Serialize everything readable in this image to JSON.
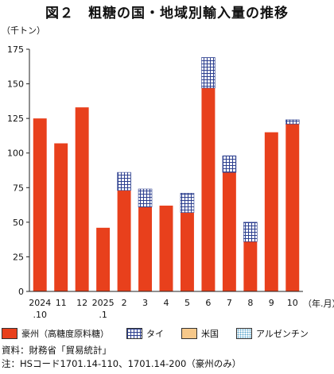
{
  "title": "図２　粗糖の国・地域別輸入量の推移",
  "chart_data": {
    "type": "bar",
    "stacked": true,
    "ylabel": "（千トン）",
    "xlabel": "（年.月）",
    "ylim": [
      0,
      175
    ],
    "yticks": [
      0,
      25,
      50,
      75,
      100,
      125,
      150,
      175
    ],
    "grid": false,
    "legend_position": "bottom",
    "categories": [
      [
        "2024",
        ".10"
      ],
      [
        "11"
      ],
      [
        "12"
      ],
      [
        "2025",
        ".1"
      ],
      [
        "2"
      ],
      [
        "3"
      ],
      [
        "4"
      ],
      [
        "5"
      ],
      [
        "6"
      ],
      [
        "7"
      ],
      [
        "8"
      ],
      [
        "9"
      ],
      [
        "10"
      ]
    ],
    "series": [
      {
        "name": "豪州（高糖度原料糖）",
        "color": "#e8401c",
        "pattern": "solid",
        "values": [
          125,
          107,
          133,
          46,
          73,
          61,
          62,
          57,
          147,
          86,
          36,
          115,
          121
        ]
      },
      {
        "name": "タイ",
        "color": "#2c3f8f",
        "pattern": "grid",
        "values": [
          0,
          0,
          0,
          0,
          13,
          13,
          0,
          14,
          22,
          12,
          14,
          0,
          3
        ]
      },
      {
        "name": "米国",
        "color": "#f6c88a",
        "pattern": "solid",
        "values": [
          0,
          0,
          0,
          0,
          0,
          0,
          0,
          0,
          0,
          0,
          0,
          0,
          0
        ]
      },
      {
        "name": "アルゼンチン",
        "color": "#5aa6cc",
        "pattern": "dots",
        "values": [
          0,
          0,
          0,
          0,
          0,
          0,
          0,
          0,
          0,
          0,
          0,
          0,
          0
        ]
      }
    ]
  },
  "notes": [
    "資料：財務省「貿易統計」",
    "注：HSコード1701.14-110、1701.14-200（豪州のみ）"
  ]
}
